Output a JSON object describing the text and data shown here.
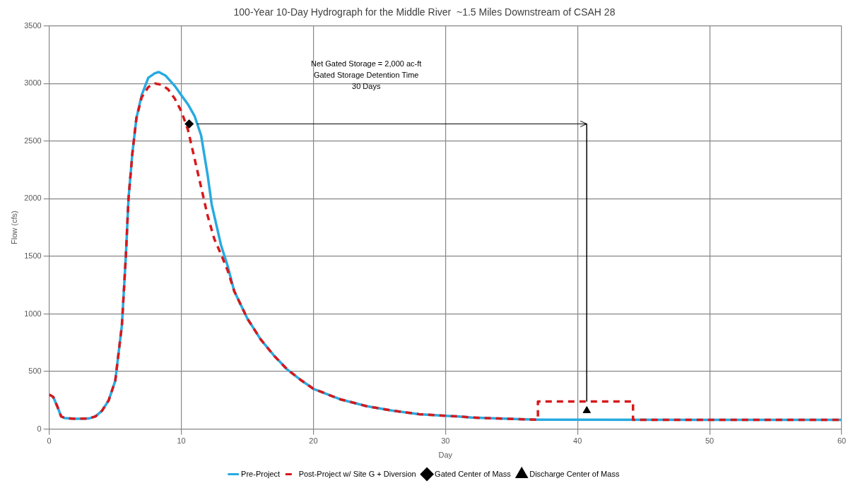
{
  "chart_data": {
    "type": "line",
    "title": "100-Year 10-Day Hydrograph for the Middle River  ~1.5 Miles Downstream of CSAH 28",
    "xlabel": "Day",
    "ylabel": "Flow (cfs)",
    "xlim": [
      0,
      60
    ],
    "xticks": [
      0,
      10,
      20,
      30,
      40,
      50,
      60
    ],
    "ylim": [
      0,
      3500
    ],
    "yticks": [
      0,
      500,
      1000,
      1500,
      2000,
      2500,
      3000,
      3500
    ],
    "grid": true,
    "legend": "bottom",
    "marker": "none",
    "series": [
      {
        "name": "Pre-Project",
        "color": "#27aae1",
        "line_style": "solid",
        "x": [
          0,
          0.3,
          0.6,
          0.9,
          1.2,
          2,
          3,
          3.5,
          4,
          4.5,
          5,
          5.5,
          5.8,
          6,
          6.3,
          6.6,
          7,
          7.5,
          8,
          8.3,
          8.8,
          9.5,
          10,
          10.5,
          11,
          11.5,
          12,
          12.3,
          12.7,
          13,
          13.5,
          14,
          15,
          16,
          17,
          18,
          19,
          20,
          22,
          24,
          26,
          28,
          30,
          31,
          32,
          34,
          36,
          37,
          60
        ],
        "values": [
          300,
          280,
          200,
          110,
          95,
          90,
          92,
          110,
          160,
          250,
          420,
          900,
          1500,
          2000,
          2400,
          2700,
          2900,
          3050,
          3090,
          3100,
          3070,
          2980,
          2900,
          2820,
          2720,
          2550,
          2200,
          1950,
          1750,
          1600,
          1420,
          1200,
          960,
          780,
          640,
          520,
          430,
          350,
          260,
          200,
          160,
          130,
          115,
          110,
          100,
          92,
          85,
          82,
          80
        ]
      },
      {
        "name": "Post-Project w/ Site G + Diversion",
        "color": "#d7191c",
        "line_style": "dashed",
        "x": [
          0,
          0.3,
          0.6,
          0.9,
          1.2,
          2,
          3,
          3.5,
          4,
          4.5,
          5,
          5.5,
          5.8,
          6,
          6.3,
          6.6,
          7,
          7.5,
          8,
          8.5,
          9,
          9.5,
          10,
          10.5,
          11,
          11.5,
          12,
          12.5,
          13,
          13.5,
          14,
          15,
          16,
          17,
          18,
          19,
          20,
          22,
          24,
          26,
          28,
          30,
          31,
          32,
          34,
          36,
          37,
          37,
          44.2,
          44.2,
          60
        ],
        "values": [
          300,
          280,
          200,
          110,
          95,
          90,
          92,
          110,
          160,
          250,
          420,
          900,
          1500,
          2000,
          2400,
          2700,
          2880,
          2970,
          3000,
          2990,
          2950,
          2870,
          2760,
          2600,
          2350,
          2100,
          1850,
          1650,
          1520,
          1380,
          1200,
          960,
          780,
          640,
          520,
          430,
          350,
          260,
          200,
          160,
          130,
          115,
          110,
          100,
          92,
          85,
          82,
          240,
          240,
          80,
          80
        ]
      },
      {
        "name": "Gated Center of Mass",
        "type": "scatter",
        "color": "#000000",
        "marker": "diamond",
        "x": [
          10.6
        ],
        "values": [
          2650
        ]
      },
      {
        "name": "Discharge Center of Mass",
        "type": "scatter",
        "color": "#000000",
        "marker": "triangle",
        "x": [
          40.7
        ],
        "values": [
          160
        ]
      },
      {
        "color": "#000000",
        "line_style": "solid",
        "x": [
          11.2,
          40.7,
          40.7
        ],
        "values": [
          2650,
          2650,
          240
        ]
      }
    ],
    "annotations": [
      "Net Gated Storage = 2,000 ac-ft",
      "Gated Storage Detention Time",
      "30 Days"
    ]
  }
}
